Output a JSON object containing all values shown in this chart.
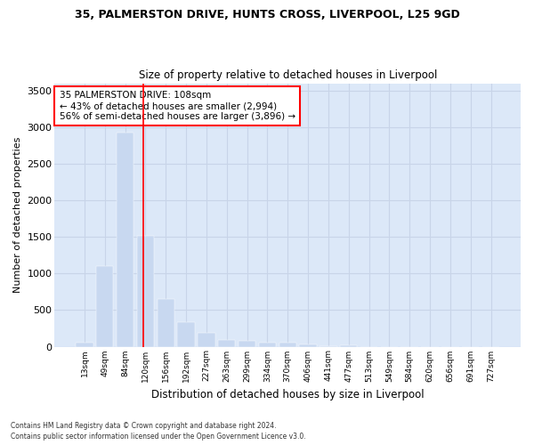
{
  "title1": "35, PALMERSTON DRIVE, HUNTS CROSS, LIVERPOOL, L25 9GD",
  "title2": "Size of property relative to detached houses in Liverpool",
  "xlabel": "Distribution of detached houses by size in Liverpool",
  "ylabel": "Number of detached properties",
  "bar_color": "#c8d8f0",
  "bar_edge_color": "#c8d8f0",
  "grid_color": "#c8d4e8",
  "background_color": "#dce8f8",
  "annotation_line1": "35 PALMERSTON DRIVE: 108sqm",
  "annotation_line2": "← 43% of detached houses are smaller (2,994)",
  "annotation_line3": "56% of semi-detached houses are larger (3,896) →",
  "categories": [
    "13sqm",
    "49sqm",
    "84sqm",
    "120sqm",
    "156sqm",
    "192sqm",
    "227sqm",
    "263sqm",
    "299sqm",
    "334sqm",
    "370sqm",
    "406sqm",
    "441sqm",
    "477sqm",
    "513sqm",
    "549sqm",
    "584sqm",
    "620sqm",
    "656sqm",
    "691sqm",
    "727sqm"
  ],
  "values": [
    55,
    1100,
    2920,
    1510,
    645,
    330,
    190,
    95,
    80,
    55,
    55,
    30,
    10,
    20,
    0,
    0,
    0,
    0,
    0,
    0,
    0
  ],
  "ylim": [
    0,
    3600
  ],
  "yticks": [
    0,
    500,
    1000,
    1500,
    2000,
    2500,
    3000,
    3500
  ],
  "red_line_x": 2.9,
  "footnote1": "Contains HM Land Registry data © Crown copyright and database right 2024.",
  "footnote2": "Contains public sector information licensed under the Open Government Licence v3.0."
}
